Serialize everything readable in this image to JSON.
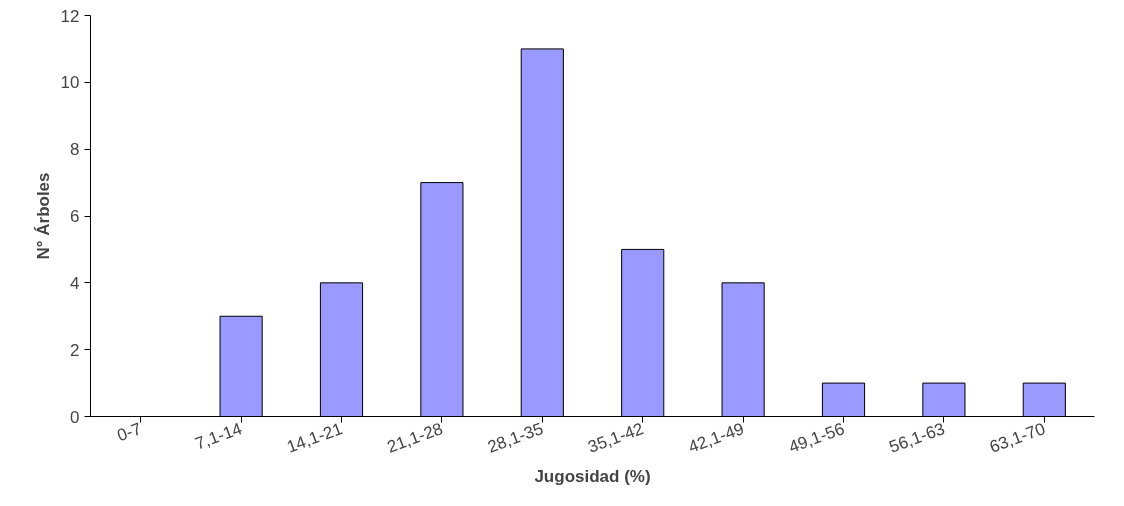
{
  "chart_data": {
    "type": "bar",
    "xlabel": "Jugosidad (%)",
    "ylabel": "N° Árboles",
    "categories": [
      "0-7",
      "7,1-14",
      "14,1-21",
      "21,1-28",
      "28,1-35",
      "35,1-42",
      "42,1-49",
      "49,1-56",
      "56,1-63",
      "63,1-70"
    ],
    "values": [
      0,
      3,
      4,
      7,
      11,
      5,
      4,
      1,
      1,
      1
    ],
    "color": "#9999ff",
    "ylim": [
      0,
      12
    ],
    "yticks": [
      0,
      2,
      4,
      6,
      8,
      10,
      12
    ],
    "grid": false
  }
}
